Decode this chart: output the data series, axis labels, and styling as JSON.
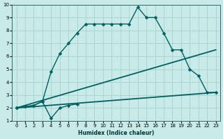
{
  "xlabel": "Humidex (Indice chaleur)",
  "xlim": [
    -0.5,
    23.5
  ],
  "ylim": [
    1,
    10
  ],
  "xticks": [
    0,
    1,
    2,
    3,
    4,
    5,
    6,
    7,
    8,
    9,
    10,
    11,
    12,
    13,
    14,
    15,
    16,
    17,
    18,
    19,
    20,
    21,
    22,
    23
  ],
  "yticks": [
    1,
    2,
    3,
    4,
    5,
    6,
    7,
    8,
    9,
    10
  ],
  "bg_color": "#c8eae8",
  "line_color": "#006060",
  "grid_color": "#a0ccc8",
  "series": [
    {
      "x": [
        0,
        1,
        2,
        3,
        4,
        5,
        6,
        7
      ],
      "y": [
        2,
        2.1,
        2.2,
        2.5,
        1.2,
        2.0,
        2.2,
        2.3
      ],
      "marker": "D",
      "markersize": 2.5,
      "linewidth": 1.0
    },
    {
      "x": [
        0,
        1,
        2,
        3,
        4,
        5,
        6,
        7,
        8,
        9,
        10,
        11,
        12,
        13,
        14,
        15,
        16,
        17,
        18,
        19,
        20,
        21,
        22,
        23
      ],
      "y": [
        2,
        2.1,
        2.2,
        2.5,
        4.8,
        6.2,
        7.0,
        7.8,
        8.5,
        8.5,
        8.5,
        8.5,
        8.5,
        8.5,
        9.8,
        9.0,
        9.0,
        7.8,
        6.5,
        6.5,
        5.0,
        4.5,
        3.2,
        3.2
      ],
      "marker": "D",
      "markersize": 2.5,
      "linewidth": 1.0
    },
    {
      "x": [
        0,
        23
      ],
      "y": [
        2,
        3.2
      ],
      "marker": null,
      "markersize": 0,
      "linewidth": 1.3
    },
    {
      "x": [
        0,
        23
      ],
      "y": [
        2,
        6.5
      ],
      "marker": null,
      "markersize": 0,
      "linewidth": 1.3
    }
  ]
}
